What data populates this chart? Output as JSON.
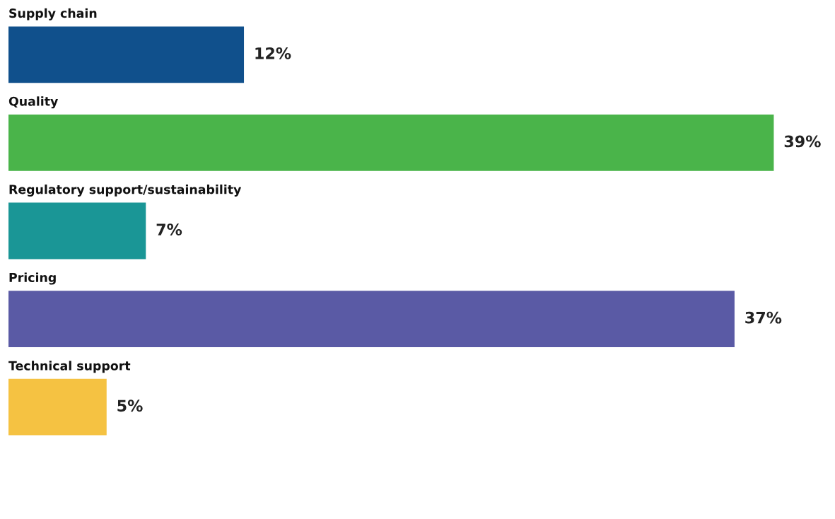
{
  "chart_data": {
    "type": "bar",
    "orientation": "horizontal",
    "categories": [
      "Supply chain",
      "Quality",
      "Regulatory support/sustainability",
      "Pricing",
      "Technical support"
    ],
    "values": [
      12,
      39,
      7,
      37,
      5
    ],
    "colors": [
      "#10508c",
      "#4ab44a",
      "#1a9696",
      "#5a5aa5",
      "#f5c242"
    ],
    "value_labels": [
      "12%",
      "39%",
      "7%",
      "37%",
      "5%"
    ],
    "grid": false,
    "legend": false,
    "tick_labels": false
  }
}
